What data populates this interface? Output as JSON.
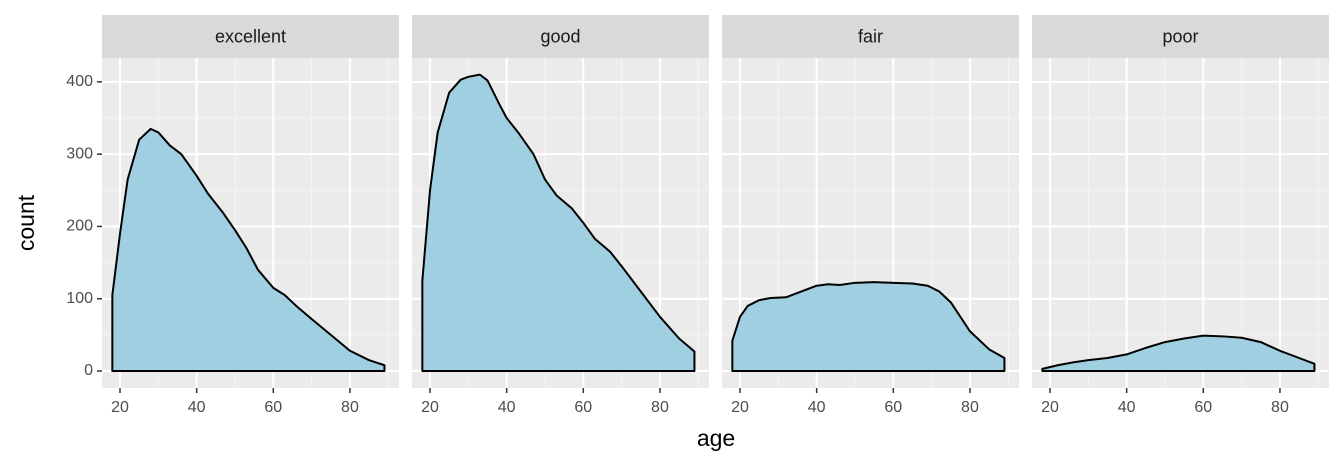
{
  "x_label": "age",
  "y_label": "count",
  "chart_data": [
    {
      "type": "area",
      "title": "excellent",
      "color": "#9fcfe1",
      "x": [
        18,
        20,
        22,
        25,
        28,
        30,
        33,
        36,
        40,
        43,
        47,
        50,
        53,
        56,
        60,
        63,
        66,
        70,
        75,
        80,
        85,
        89
      ],
      "values": [
        105,
        190,
        265,
        320,
        335,
        330,
        312,
        300,
        270,
        245,
        218,
        195,
        170,
        140,
        115,
        105,
        90,
        72,
        50,
        28,
        15,
        8
      ],
      "xlim": [
        15.3,
        92.8
      ],
      "ylim": [
        -23.5,
        433
      ],
      "xticks": [
        20,
        40,
        60,
        80
      ],
      "yticks": [
        0,
        100,
        200,
        300,
        400
      ],
      "grid": true
    },
    {
      "type": "area",
      "title": "good",
      "color": "#9fcfe1",
      "x": [
        18,
        20,
        22,
        25,
        28,
        30,
        33,
        35,
        38,
        40,
        43,
        47,
        50,
        53,
        57,
        60,
        63,
        67,
        70,
        75,
        80,
        85,
        89
      ],
      "values": [
        125,
        250,
        330,
        385,
        403,
        407,
        410,
        402,
        370,
        350,
        330,
        300,
        265,
        243,
        225,
        205,
        183,
        165,
        145,
        110,
        75,
        45,
        27
      ],
      "xlim": [
        15.3,
        92.8
      ],
      "ylim": [
        -23.5,
        433
      ],
      "xticks": [
        20,
        40,
        60,
        80
      ],
      "yticks": [
        0,
        100,
        200,
        300,
        400
      ],
      "grid": true
    },
    {
      "type": "area",
      "title": "fair",
      "color": "#9fcfe1",
      "x": [
        18,
        20,
        22,
        25,
        28,
        32,
        35,
        40,
        43,
        46,
        50,
        55,
        60,
        65,
        69,
        72,
        75,
        80,
        85,
        89
      ],
      "values": [
        42,
        75,
        90,
        98,
        101,
        102,
        108,
        118,
        120,
        119,
        122,
        123,
        122,
        121,
        118,
        110,
        95,
        55,
        30,
        18
      ],
      "xlim": [
        15.3,
        92.8
      ],
      "ylim": [
        -23.5,
        433
      ],
      "xticks": [
        20,
        40,
        60,
        80
      ],
      "yticks": [
        0,
        100,
        200,
        300,
        400
      ],
      "grid": true
    },
    {
      "type": "area",
      "title": "poor",
      "color": "#9fcfe1",
      "x": [
        18,
        22,
        26,
        30,
        35,
        40,
        45,
        50,
        55,
        60,
        65,
        70,
        75,
        80,
        85,
        89
      ],
      "values": [
        3,
        8,
        12,
        15,
        18,
        23,
        32,
        40,
        45,
        49,
        48,
        46,
        40,
        28,
        18,
        10
      ],
      "xlim": [
        15.3,
        92.8
      ],
      "ylim": [
        -23.5,
        433
      ],
      "xticks": [
        20,
        40,
        60,
        80
      ],
      "yticks": [
        0,
        100,
        200,
        300,
        400
      ],
      "grid": true
    }
  ]
}
